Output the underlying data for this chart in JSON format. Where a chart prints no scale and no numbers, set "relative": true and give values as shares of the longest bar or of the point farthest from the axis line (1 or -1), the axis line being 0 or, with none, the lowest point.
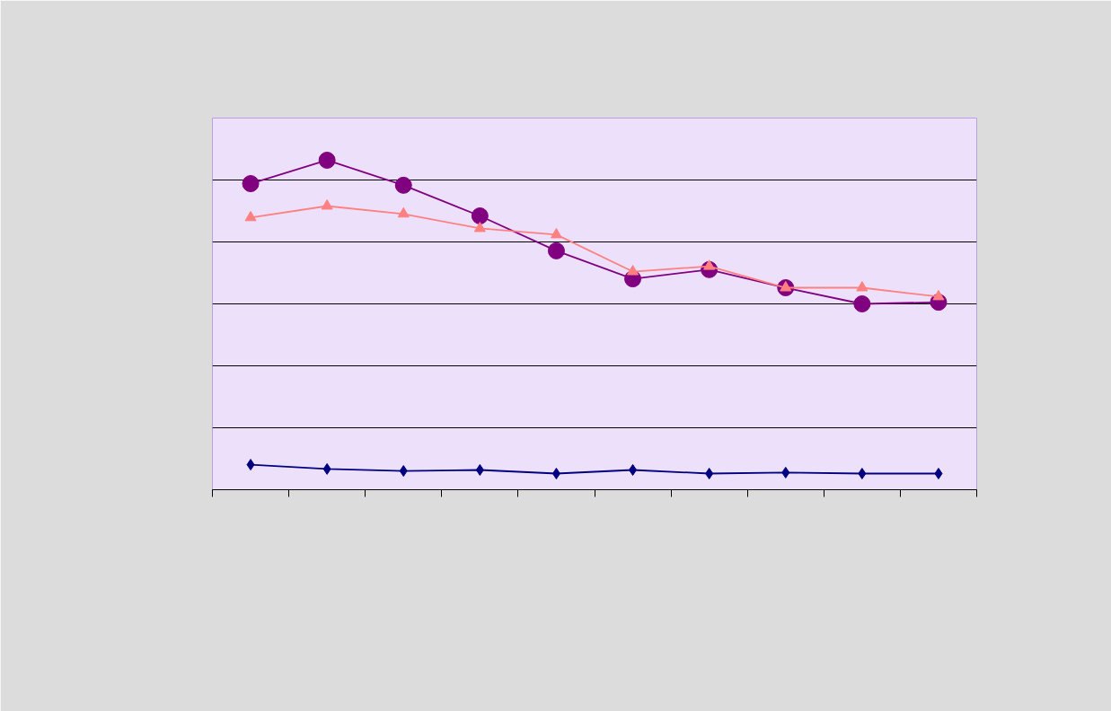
{
  "chart_data": {
    "type": "line",
    "relative": true,
    "categories": [
      null,
      null,
      null,
      null,
      null,
      null,
      null,
      null,
      null,
      null
    ],
    "grid": "y",
    "series": [
      {
        "color": "#000080",
        "marker": "diamond",
        "values": [
          0.076,
          0.063,
          0.057,
          0.06,
          0.049,
          0.06,
          0.049,
          0.052,
          0.049,
          0.049
        ]
      },
      {
        "color": "#800080",
        "marker": "circle",
        "values": [
          0.929,
          1,
          0.924,
          0.831,
          0.725,
          0.64,
          0.668,
          0.613,
          0.564,
          0.569
        ]
      },
      {
        "color": "#ff8080",
        "marker": "triangle",
        "values": [
          0.826,
          0.861,
          0.837,
          0.793,
          0.774,
          0.662,
          0.678,
          0.613,
          0.613,
          0.586
        ]
      }
    ]
  }
}
